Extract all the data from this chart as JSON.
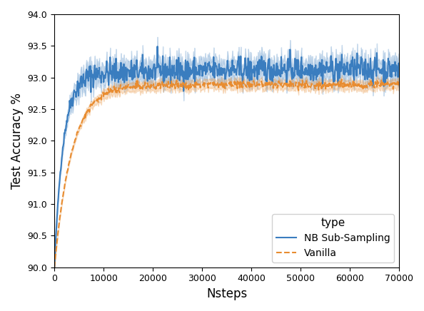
{
  "title": "",
  "xlabel": "Nsteps",
  "ylabel": "Test Accuracy %",
  "xlim": [
    0,
    70000
  ],
  "ylim": [
    90.0,
    94.0
  ],
  "yticks": [
    90.0,
    90.5,
    91.0,
    91.5,
    92.0,
    92.5,
    93.0,
    93.5,
    94.0
  ],
  "xticks": [
    0,
    10000,
    20000,
    30000,
    40000,
    50000,
    60000,
    70000
  ],
  "xtick_labels": [
    "0",
    "10000",
    "20000",
    "30000",
    "40000",
    "50000",
    "60000",
    "70000"
  ],
  "legend_title": "type",
  "legend_entries": [
    "NB Sub-Sampling",
    "Vanilla"
  ],
  "nb_color": "#3a7dbf",
  "vanilla_color": "#e88c30",
  "nb_alpha": 0.25,
  "vanilla_alpha": 0.25,
  "nb_linestyle": "-",
  "vanilla_linestyle": "--",
  "nb_linewidth": 1.5,
  "vanilla_linewidth": 1.5,
  "nb_rise": 1800,
  "nb_plateau": 93.08,
  "nb_start": 90.0,
  "van_rise": 3500,
  "van_plateau": 92.88,
  "van_start": 90.0,
  "n_steps": 700,
  "seed": 42
}
